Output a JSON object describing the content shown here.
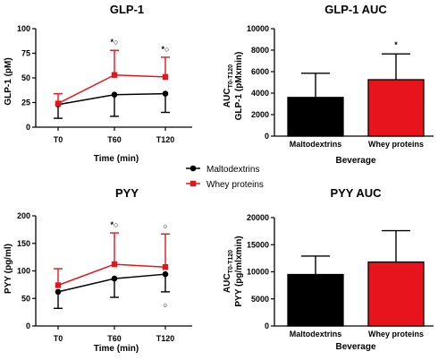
{
  "legend": {
    "entries": [
      {
        "name": "Maltodextrins",
        "color": "#000000",
        "marker": "circle"
      },
      {
        "name": "Whey proteins",
        "color": "#e8141b",
        "marker": "square"
      }
    ]
  },
  "chart_data": [
    {
      "type": "line",
      "title": "GLP-1",
      "xlabel": "Time (min)",
      "ylabel": "GLP-1 (pM)",
      "x": [
        "T0",
        "T60",
        "T120"
      ],
      "ylim": [
        0,
        100
      ],
      "yticks": [
        0,
        25,
        50,
        75,
        100
      ],
      "series": [
        {
          "name": "Maltodextrins",
          "color": "#000000",
          "values": [
            23,
            33,
            34
          ],
          "error_down": [
            14,
            22,
            19
          ]
        },
        {
          "name": "Whey proteins",
          "color": "#e8141b",
          "values": [
            24,
            53,
            51
          ],
          "error_up": [
            10,
            25,
            20
          ]
        }
      ],
      "annotations": [
        {
          "x": "T60",
          "text": "*○"
        },
        {
          "x": "T120",
          "text": "*○"
        }
      ]
    },
    {
      "type": "bar",
      "title": "GLP-1 AUC",
      "xlabel": "Beverage",
      "ylabel_main": "AUC",
      "ylabel_sub": "T0-T120",
      "ylabel_unit": "GLP-1 (pMxmin)",
      "categories": [
        "Maltodextrins",
        "Whey proteins"
      ],
      "values": [
        3600,
        5250
      ],
      "error_up": [
        2250,
        2400
      ],
      "colors": [
        "#000000",
        "#e8141b"
      ],
      "ylim": [
        0,
        10000
      ],
      "yticks": [
        0,
        2000,
        4000,
        6000,
        8000,
        10000
      ],
      "annotations": [
        {
          "category": "Whey proteins",
          "text": "*"
        }
      ]
    },
    {
      "type": "line",
      "title": "PYY",
      "xlabel": "Time (min)",
      "ylabel": "PYY (pg/ml)",
      "x": [
        "T0",
        "T60",
        "T120"
      ],
      "ylim": [
        0,
        200
      ],
      "yticks": [
        0,
        50,
        100,
        150,
        200
      ],
      "series": [
        {
          "name": "Maltodextrins",
          "color": "#000000",
          "values": [
            62,
            86,
            94
          ],
          "error_down": [
            30,
            34,
            32
          ]
        },
        {
          "name": "Whey proteins",
          "color": "#e8141b",
          "values": [
            74,
            112,
            107
          ],
          "error_up": [
            30,
            57,
            60
          ]
        }
      ],
      "annotations": [
        {
          "x": "T60",
          "text": "*○"
        },
        {
          "x": "T120",
          "text": "○"
        }
      ],
      "extra_points": [
        {
          "x": "T120",
          "y": 38,
          "text": "○"
        }
      ]
    },
    {
      "type": "bar",
      "title": "PYY AUC",
      "xlabel": "Beverage",
      "ylabel_main": "AUC",
      "ylabel_sub": "T0-T120",
      "ylabel_unit": "PYY (pg/mlxmin)",
      "categories": [
        "Maltodextrins",
        "Whey proteins"
      ],
      "values": [
        9500,
        11800
      ],
      "error_up": [
        3400,
        5800
      ],
      "colors": [
        "#000000",
        "#e8141b"
      ],
      "ylim": [
        0,
        20000
      ],
      "yticks": [
        0,
        5000,
        10000,
        15000,
        20000
      ],
      "annotations": []
    }
  ]
}
